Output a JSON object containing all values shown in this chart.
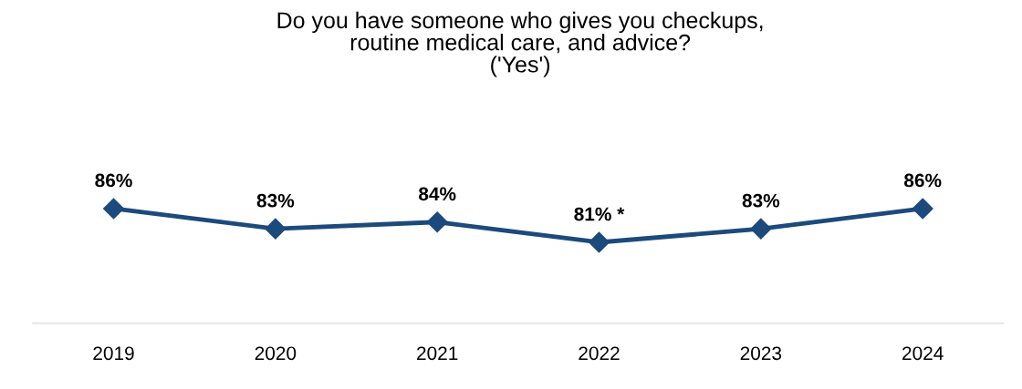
{
  "chart_data": {
    "type": "line",
    "title": "Do you have someone who gives you checkups,\nroutine medical care, and advice?\n('Yes')",
    "categories": [
      "2019",
      "2020",
      "2021",
      "2022",
      "2023",
      "2024"
    ],
    "series": [
      {
        "color": "#1c4a7c",
        "values": [
          86,
          83,
          84,
          81,
          83,
          86
        ],
        "value_labels": [
          "86%",
          "83%",
          "84%",
          "81% *",
          "83%",
          "86%"
        ]
      }
    ],
    "tick_labels": "x",
    "marker": "diamond",
    "line_style": "solid",
    "grid": false,
    "legend": false
  }
}
